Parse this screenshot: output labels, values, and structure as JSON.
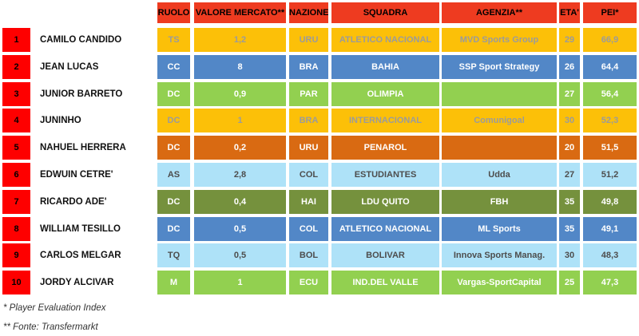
{
  "chart_data": {
    "type": "table",
    "columns": [
      "RUOLO",
      "VALORE MERCATO**",
      "NAZIONE",
      "SQUADRA",
      "AGENZIA**",
      "ETA'",
      "PEI*"
    ],
    "rows": [
      {
        "rank": "1",
        "name": "CAMILO CANDIDO",
        "ruolo": "TS",
        "valore": "1,2",
        "nazione": "URU",
        "squadra": "ATLETICO NACIONAL",
        "agenzia": "MVD Sports Group",
        "eta": "29",
        "pei": "66,9",
        "theme": "amber"
      },
      {
        "rank": "2",
        "name": "JEAN LUCAS",
        "ruolo": "CC",
        "valore": "8",
        "nazione": "BRA",
        "squadra": "BAHIA",
        "agenzia": "SSP Sport Strategy",
        "eta": "26",
        "pei": "64,4",
        "theme": "blue"
      },
      {
        "rank": "3",
        "name": "JUNIOR BARRETO",
        "ruolo": "DC",
        "valore": "0,9",
        "nazione": "PAR",
        "squadra": "OLIMPIA",
        "agenzia": "",
        "eta": "27",
        "pei": "56,4",
        "theme": "green"
      },
      {
        "rank": "4",
        "name": "JUNINHO",
        "ruolo": "DC",
        "valore": "1",
        "nazione": "BRA",
        "squadra": "INTERNACIONAL",
        "agenzia": "Comunigoal",
        "eta": "30",
        "pei": "52,3",
        "theme": "amber"
      },
      {
        "rank": "5",
        "name": "NAHUEL HERRERA",
        "ruolo": "DC",
        "valore": "0,2",
        "nazione": "URU",
        "squadra": "PENAROL",
        "agenzia": "",
        "eta": "20",
        "pei": "51,5",
        "theme": "dkorange"
      },
      {
        "rank": "6",
        "name": "EDWUIN CETRE'",
        "ruolo": "AS",
        "valore": "2,8",
        "nazione": "COL",
        "squadra": "ESTUDIANTES",
        "agenzia": "Udda",
        "eta": "27",
        "pei": "51,2",
        "theme": "ltblue"
      },
      {
        "rank": "7",
        "name": "RICARDO ADE'",
        "ruolo": "DC",
        "valore": "0,4",
        "nazione": "HAI",
        "squadra": "LDU QUITO",
        "agenzia": "FBH",
        "eta": "35",
        "pei": "49,8",
        "theme": "olive"
      },
      {
        "rank": "8",
        "name": "WILLIAM TESILLO",
        "ruolo": "DC",
        "valore": "0,5",
        "nazione": "COL",
        "squadra": "ATLETICO NACIONAL",
        "agenzia": "ML Sports",
        "eta": "35",
        "pei": "49,1",
        "theme": "blue"
      },
      {
        "rank": "9",
        "name": "CARLOS MELGAR",
        "ruolo": "TQ",
        "valore": "0,5",
        "nazione": "BOL",
        "squadra": "BOLIVAR",
        "agenzia": "Innova Sports Manag.",
        "eta": "30",
        "pei": "48,3",
        "theme": "ltblue"
      },
      {
        "rank": "10",
        "name": "JORDY ALCIVAR",
        "ruolo": "M",
        "valore": "1",
        "nazione": "ECU",
        "squadra": "IND.DEL VALLE",
        "agenzia": "Vargas-SportCapital",
        "eta": "25",
        "pei": "47,3",
        "theme": "green"
      }
    ]
  },
  "footnotes": {
    "pei": "* Player Evaluation Index",
    "fonte": "** Fonte: Transfermarkt"
  },
  "colors": {
    "header_bg": "#EE3B20",
    "header_text": "#000000",
    "rank_bg": "#FE0000",
    "rank_text": "#000000",
    "themes": {
      "amber": {
        "bg": "#FCC008",
        "text": "#9B9B9B"
      },
      "blue": {
        "bg": "#5287C7",
        "text": "#FFFFFF"
      },
      "green": {
        "bg": "#92D050",
        "text": "#FFFFFF"
      },
      "dkorange": {
        "bg": "#D96A12",
        "text": "#FFFFFF"
      },
      "ltblue": {
        "bg": "#AEE2F8",
        "text": "#4D4D4D"
      },
      "olive": {
        "bg": "#75913D",
        "text": "#FFFFFF"
      }
    }
  }
}
